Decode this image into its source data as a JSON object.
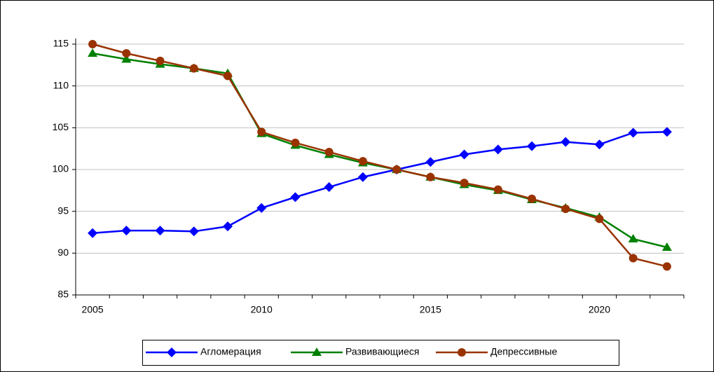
{
  "chart_data": {
    "type": "line",
    "x": [
      2005,
      2006,
      2007,
      2008,
      2009,
      2010,
      2011,
      2012,
      2013,
      2014,
      2015,
      2016,
      2017,
      2018,
      2019,
      2020,
      2021,
      2022
    ],
    "series": [
      {
        "name": "Агломерация",
        "color": "#0000ff",
        "marker": "diamond",
        "values": [
          92.4,
          92.7,
          92.7,
          92.6,
          93.2,
          95.4,
          96.7,
          97.9,
          99.1,
          100,
          100.9,
          101.8,
          102.4,
          102.8,
          103.3,
          103.0,
          104.4,
          104.5
        ]
      },
      {
        "name": "Развивающиеся",
        "color": "#008000",
        "marker": "triangle",
        "values": [
          113.9,
          113.2,
          112.6,
          112.1,
          111.5,
          104.3,
          102.9,
          101.8,
          100.8,
          100,
          99.1,
          98.2,
          97.5,
          96.4,
          95.4,
          94.3,
          91.7,
          90.7
        ]
      },
      {
        "name": "Депрессивные",
        "color": "#993300",
        "marker": "circle",
        "values": [
          115.0,
          113.9,
          113.0,
          112.1,
          111.2,
          104.5,
          103.2,
          102.1,
          101.0,
          100,
          99.1,
          98.4,
          97.6,
          96.5,
          95.3,
          94.1,
          89.4,
          88.4
        ]
      }
    ],
    "xlim": [
      2004.5,
      2022.5
    ],
    "xticks": [
      2005,
      2010,
      2015,
      2020
    ],
    "ylim": [
      85,
      115
    ],
    "yticks": [
      85,
      90,
      95,
      100,
      105,
      110,
      115
    ],
    "grid": true,
    "legend": "bottom"
  }
}
